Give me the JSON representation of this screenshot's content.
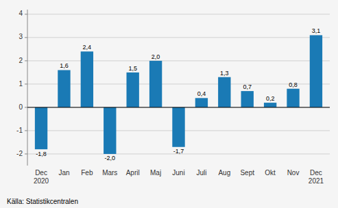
{
  "chart_data": {
    "type": "bar",
    "categories": [
      "Dec\n2020",
      "Jan",
      "Feb",
      "Mars",
      "April",
      "Maj",
      "Juni",
      "Juli",
      "Aug",
      "Sept",
      "Okt",
      "Nov",
      "Dec\n2021"
    ],
    "values": [
      -1.8,
      1.6,
      2.4,
      -2.0,
      1.5,
      2.0,
      -1.7,
      0.4,
      1.3,
      0.7,
      0.2,
      0.8,
      3.1
    ],
    "value_labels": [
      "-1,8",
      "1,6",
      "2,4",
      "-2,0",
      "1,5",
      "2,0",
      "-1,7",
      "0,4",
      "1,3",
      "0,7",
      "0,2",
      "0,8",
      "3,1"
    ],
    "data_labels": true,
    "color": "#1a7ab5",
    "ylim": [
      -2.5,
      4.2
    ],
    "yticks": [
      -2,
      -1,
      0,
      1,
      2,
      3,
      4
    ],
    "grid": true,
    "annotations": [
      "Källa: Statistikcentralen"
    ]
  }
}
